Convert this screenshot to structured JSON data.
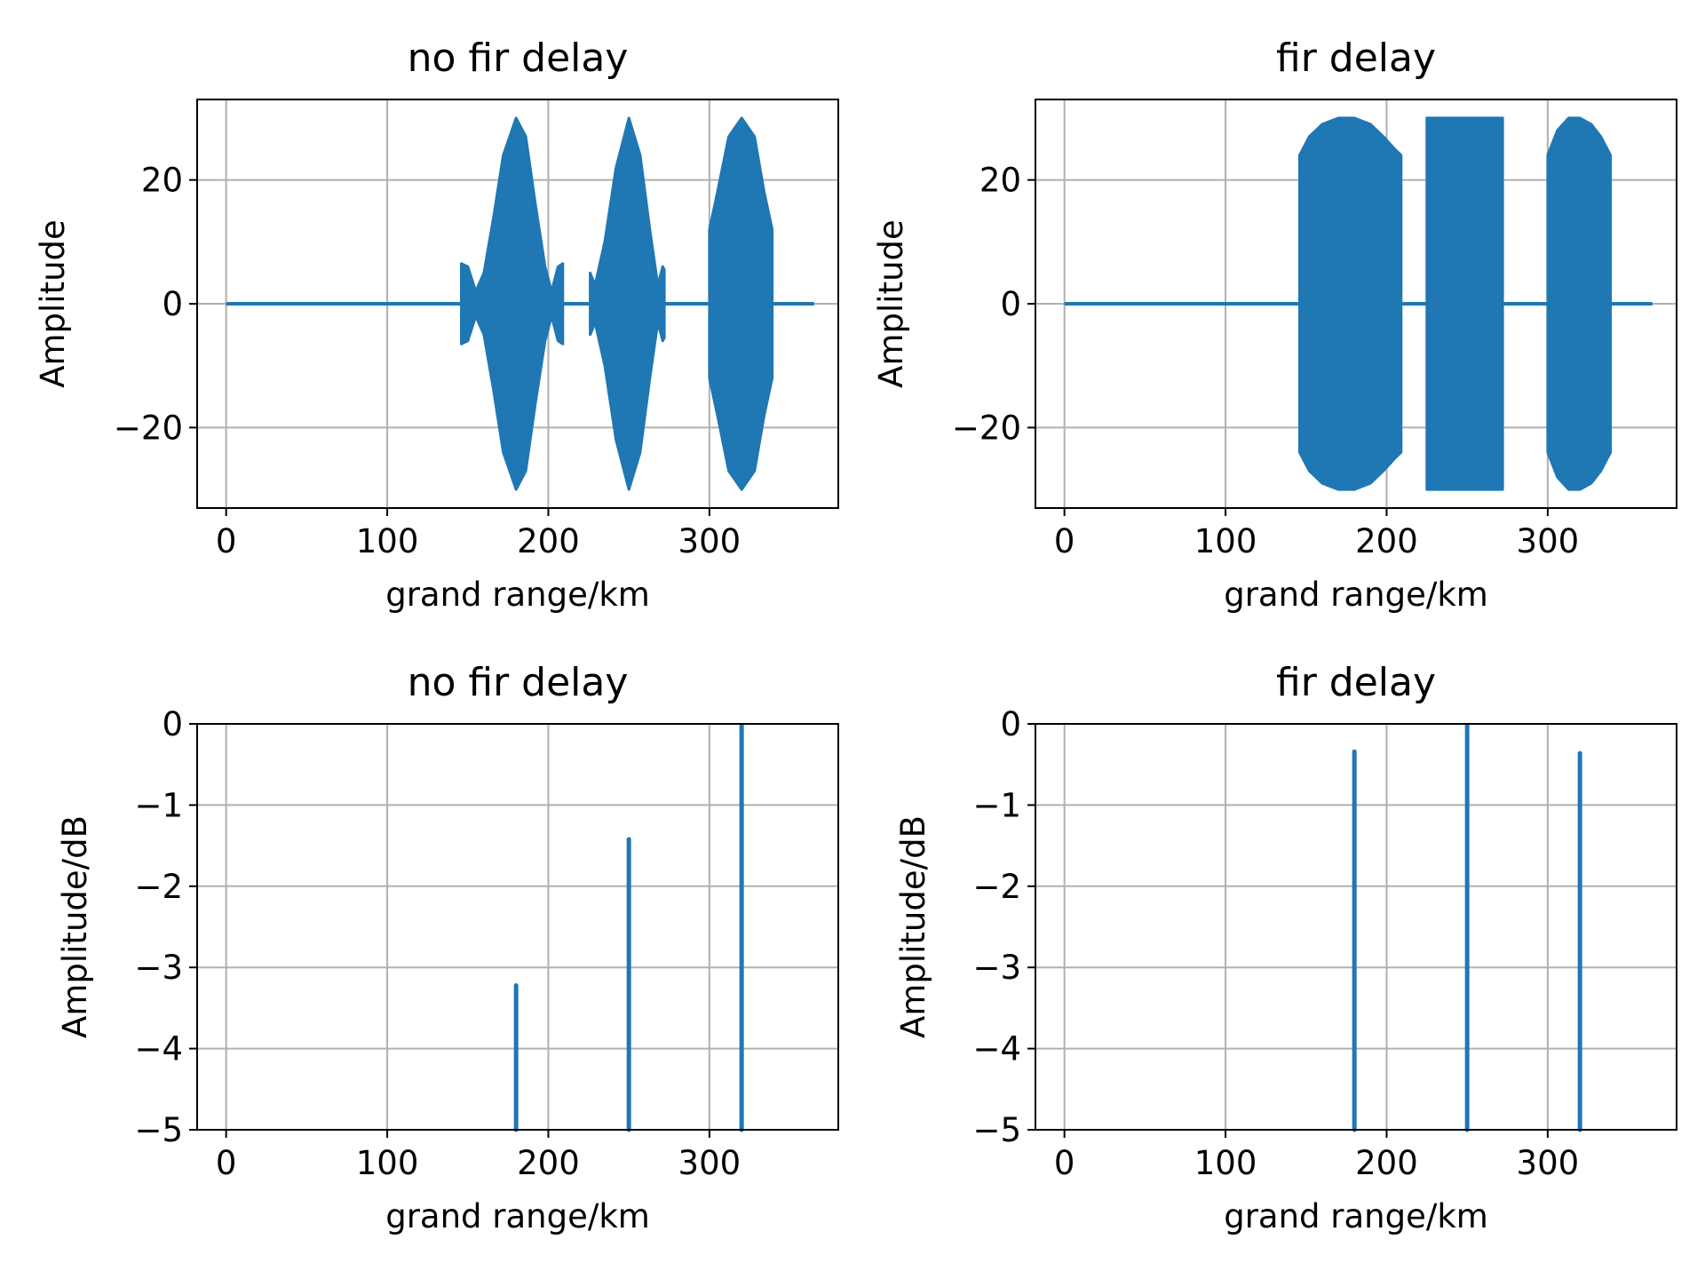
{
  "figure": {
    "background": "#ffffff",
    "series_color": "#1f77b4",
    "grid_color": "#b0b0b0"
  },
  "chart_data": [
    {
      "id": "p1",
      "type": "line",
      "title": "no fir delay",
      "xlabel": "grand range/km",
      "ylabel": "Amplitude",
      "xlim": [
        -18,
        380
      ],
      "ylim": [
        -33,
        33
      ],
      "xticks": [
        0,
        100,
        200,
        300
      ],
      "xtick_labels": [
        "0",
        "100",
        "200",
        "300"
      ],
      "yticks": [
        20,
        0,
        -20
      ],
      "ytick_labels": [
        "20",
        "0",
        "−20"
      ],
      "grid": true,
      "baseline": {
        "x": [
          0,
          365
        ],
        "y": 0
      },
      "series": [
        {
          "envelope": [
            [
              146,
              6.5
            ],
            [
              150,
              6
            ],
            [
              155,
              2
            ],
            [
              160,
              5
            ],
            [
              166,
              14
            ],
            [
              172,
              24
            ],
            [
              180,
              30
            ],
            [
              186,
              27
            ],
            [
              192,
              16
            ],
            [
              198,
              6
            ],
            [
              202,
              2
            ],
            [
              206,
              6
            ],
            [
              209,
              6.5
            ]
          ]
        },
        {
          "envelope": [
            [
              226,
              5
            ],
            [
              229,
              3
            ],
            [
              235,
              10
            ],
            [
              242,
              22
            ],
            [
              250,
              30
            ],
            [
              257,
              24
            ],
            [
              263,
              12
            ],
            [
              268,
              3
            ],
            [
              271,
              6
            ],
            [
              272,
              5.5
            ]
          ]
        },
        {
          "envelope": [
            [
              300,
              12
            ],
            [
              305,
              18
            ],
            [
              312,
              27
            ],
            [
              320,
              30
            ],
            [
              328,
              27
            ],
            [
              334,
              18
            ],
            [
              339,
              12
            ]
          ]
        }
      ]
    },
    {
      "id": "p2",
      "type": "line",
      "title": "fir delay",
      "xlabel": "grand range/km",
      "ylabel": "Amplitude",
      "xlim": [
        -18,
        380
      ],
      "ylim": [
        -33,
        33
      ],
      "xticks": [
        0,
        100,
        200,
        300
      ],
      "xtick_labels": [
        "0",
        "100",
        "200",
        "300"
      ],
      "yticks": [
        20,
        0,
        -20
      ],
      "ytick_labels": [
        "20",
        "0",
        "−20"
      ],
      "grid": true,
      "baseline": {
        "x": [
          0,
          365
        ],
        "y": 0
      },
      "series": [
        {
          "envelope": [
            [
              146,
              24
            ],
            [
              152,
              27
            ],
            [
              160,
              29
            ],
            [
              170,
              30
            ],
            [
              180,
              30
            ],
            [
              190,
              29
            ],
            [
              198,
              27
            ],
            [
              205,
              25
            ],
            [
              209,
              24
            ]
          ]
        },
        {
          "envelope": [
            [
              225,
              30
            ],
            [
              272,
              30
            ]
          ]
        },
        {
          "envelope": [
            [
              300,
              24
            ],
            [
              306,
              28
            ],
            [
              313,
              30
            ],
            [
              320,
              30
            ],
            [
              327,
              29
            ],
            [
              333,
              27
            ],
            [
              339,
              24
            ]
          ]
        }
      ]
    },
    {
      "id": "p3",
      "type": "bar",
      "title": "no fir delay",
      "xlabel": "grand range/km",
      "ylabel": "Amplitude/dB",
      "xlim": [
        -18,
        380
      ],
      "ylim": [
        -5,
        0
      ],
      "xticks": [
        0,
        100,
        200,
        300
      ],
      "xtick_labels": [
        "0",
        "100",
        "200",
        "300"
      ],
      "yticks": [
        0,
        -1,
        -2,
        -3,
        -4,
        -5
      ],
      "ytick_labels": [
        "0",
        "−1",
        "−2",
        "−3",
        "−4",
        "−5"
      ],
      "grid": true,
      "stems": [
        {
          "x": 180,
          "y": -3.2
        },
        {
          "x": 250,
          "y": -1.4
        },
        {
          "x": 320,
          "y": 0
        }
      ]
    },
    {
      "id": "p4",
      "type": "bar",
      "title": "fir delay",
      "xlabel": "grand range/km",
      "ylabel": "Amplitude/dB",
      "xlim": [
        -18,
        380
      ],
      "ylim": [
        -5,
        0
      ],
      "xticks": [
        0,
        100,
        200,
        300
      ],
      "xtick_labels": [
        "0",
        "100",
        "200",
        "300"
      ],
      "yticks": [
        0,
        -1,
        -2,
        -3,
        -4,
        -5
      ],
      "ytick_labels": [
        "0",
        "−1",
        "−2",
        "−3",
        "−4",
        "−5"
      ],
      "grid": true,
      "stems": [
        {
          "x": 180,
          "y": -0.32
        },
        {
          "x": 250,
          "y": 0
        },
        {
          "x": 320,
          "y": -0.34
        }
      ]
    }
  ]
}
